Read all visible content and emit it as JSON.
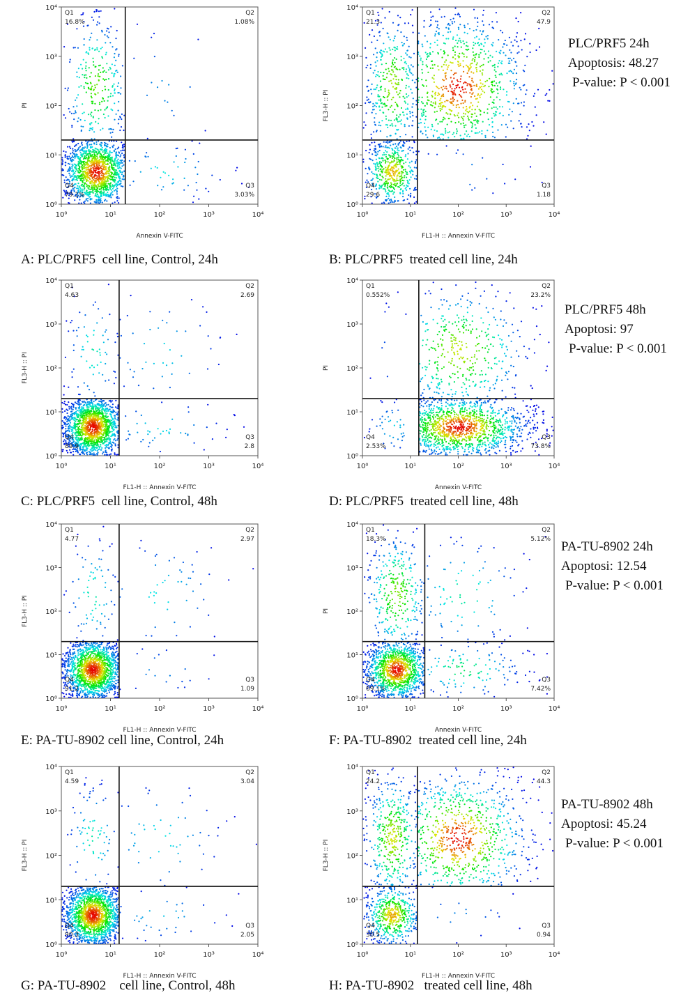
{
  "figure": {
    "axis": {
      "lim": [
        1,
        10000
      ],
      "log": true,
      "ticks": [
        {
          "value": 1,
          "label": "10⁰"
        },
        {
          "value": 10,
          "label": "10¹"
        },
        {
          "value": 100,
          "label": "10²"
        },
        {
          "value": 1000,
          "label": "10³"
        },
        {
          "value": 10000,
          "label": "10⁴"
        }
      ]
    },
    "panels": [
      {
        "x_label": "Annexin V-FITC",
        "y_label": "PI",
        "caption": "A: PLC/PRF5  cell line, Control, 24h",
        "gate": {
          "x": 20,
          "y": 20
        },
        "quadrants": [
          {
            "name": "Q1",
            "value": 16.8,
            "label": "16.8%"
          },
          {
            "name": "Q2",
            "value": 1.08,
            "label": "1.08%"
          },
          {
            "name": "Q3",
            "value": 3.03,
            "label": "3.03%"
          },
          {
            "name": "Q4",
            "value": 79.1,
            "label": "79.1%"
          }
        ]
      },
      {
        "x_label": "FL1-H :: Annexin V-FITC",
        "y_label": "FL3-H :: PI",
        "caption": "B: PLC/PRF5  treated cell line, 24h",
        "gate": {
          "x": 14,
          "y": 20
        },
        "quadrants": [
          {
            "name": "Q1",
            "value": 21.3
          },
          {
            "name": "Q2",
            "value": 47.9
          },
          {
            "name": "Q3",
            "value": 1.18
          },
          {
            "name": "Q4",
            "value": 29.6
          }
        ]
      },
      {
        "x_label": "FL1-H :: Annexin V-FITC",
        "y_label": "FL3-H :: PI",
        "caption": "C: PLC/PRF5  cell line, Control, 48h",
        "gate": {
          "x": 15,
          "y": 20
        },
        "quadrants": [
          {
            "name": "Q1",
            "value": 4.63
          },
          {
            "name": "Q2",
            "value": 2.69
          },
          {
            "name": "Q3",
            "value": 2.8
          },
          {
            "name": "Q4",
            "value": 89.9
          }
        ]
      },
      {
        "x_label": "Annexin V-FITC",
        "y_label": "PI",
        "caption": "D: PLC/PRF5  treated cell line, 48h",
        "gate": {
          "x": 15,
          "y": 20
        },
        "quadrants": [
          {
            "name": "Q1",
            "value": 0.552,
            "label": "0.552%"
          },
          {
            "name": "Q2",
            "value": 23.2,
            "label": "23.2%"
          },
          {
            "name": "Q3",
            "value": 73.8,
            "label": "73.8%"
          },
          {
            "name": "Q4",
            "value": 2.53,
            "label": "2.53%"
          }
        ]
      },
      {
        "x_label": "FL1-H :: Annexin V-FITC",
        "y_label": "FL3-H :: PI",
        "caption": "E: PA-TU-8902 cell line, Control, 24h",
        "gate": {
          "x": 15,
          "y": 20
        },
        "quadrants": [
          {
            "name": "Q1",
            "value": 4.77
          },
          {
            "name": "Q2",
            "value": 2.97
          },
          {
            "name": "Q3",
            "value": 1.09
          },
          {
            "name": "Q4",
            "value": 91.2
          }
        ]
      },
      {
        "x_label": "Annexin V-FITC",
        "y_label": "PI",
        "caption": "F: PA-TU-8902  treated cell line, 24h",
        "gate": {
          "x": 20,
          "y": 20
        },
        "quadrants": [
          {
            "name": "Q1",
            "value": 18.3,
            "label": "18.3%"
          },
          {
            "name": "Q2",
            "value": 5.12,
            "label": "5.12%"
          },
          {
            "name": "Q3",
            "value": 7.42,
            "label": "7.42%"
          },
          {
            "name": "Q4",
            "value": 69.1,
            "label": "69.1%"
          }
        ]
      },
      {
        "x_label": "FL1-H :: Annexin V-FITC",
        "y_label": "FL3-H :: PI",
        "caption": "G: PA-TU-8902    cell line, Control, 48h",
        "gate": {
          "x": 15,
          "y": 20
        },
        "quadrants": [
          {
            "name": "Q1",
            "value": 4.59
          },
          {
            "name": "Q2",
            "value": 3.04
          },
          {
            "name": "Q3",
            "value": 2.05
          },
          {
            "name": "Q4",
            "value": 90.3
          }
        ]
      },
      {
        "x_label": "FL1-H :: Annexin V-FITC",
        "y_label": "FL3-H :: PI",
        "caption": "H: PA-TU-8902   treated cell line, 48h",
        "gate": {
          "x": 14,
          "y": 20
        },
        "quadrants": [
          {
            "name": "Q1",
            "value": 24.2
          },
          {
            "name": "Q2",
            "value": 44.3
          },
          {
            "name": "Q3",
            "value": 0.94
          },
          {
            "name": "Q4",
            "value": 30.5
          }
        ]
      }
    ],
    "notes": [
      {
        "lines": [
          "PLC/PRF5 24h",
          "Apoptosis: 48.27",
          "P-value: P < 0.001"
        ]
      },
      {
        "lines": [
          "PLC/PRF5 48h",
          "Apoptosi: 97",
          "P-value: P < 0.001"
        ]
      },
      {
        "lines": [
          "PA-TU-8902 24h",
          "Apoptosi: 12.54",
          "P-value: P < 0.001"
        ]
      },
      {
        "lines": [
          "PA-TU-8902 48h",
          "Apoptosi: 45.24",
          "P-value: P < 0.001"
        ]
      }
    ]
  }
}
